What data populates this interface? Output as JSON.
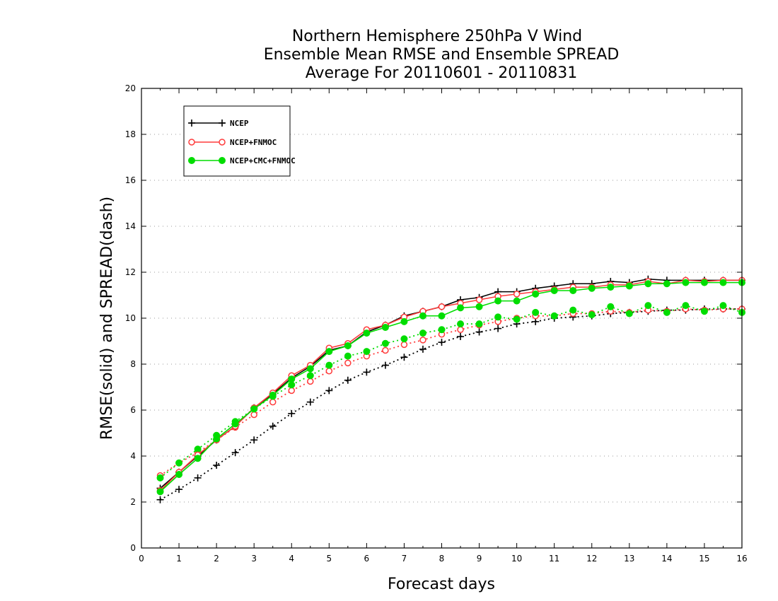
{
  "chart_data": {
    "type": "line",
    "title": [
      "Northern Hemisphere 250hPa V Wind",
      "Ensemble Mean RMSE and Ensemble SPREAD",
      "Average For 20110601 - 20110831"
    ],
    "xlabel": "Forecast days",
    "ylabel": "RMSE(solid) and SPREAD(dash)",
    "xlim": [
      0,
      16
    ],
    "ylim": [
      0,
      20
    ],
    "xticks": [
      0,
      1,
      2,
      3,
      4,
      5,
      6,
      7,
      8,
      9,
      10,
      11,
      12,
      13,
      14,
      15,
      16
    ],
    "yticks": [
      0,
      2,
      4,
      6,
      8,
      10,
      12,
      14,
      16,
      18,
      20
    ],
    "grid": "horizontal dotted",
    "legend_position": "top-left",
    "x": [
      0.5,
      1,
      1.5,
      2,
      2.5,
      3,
      3.5,
      4,
      4.5,
      5,
      5.5,
      6,
      6.5,
      7,
      7.5,
      8,
      8.5,
      9,
      9.5,
      10,
      10.5,
      11,
      11.5,
      12,
      12.5,
      13,
      13.5,
      14,
      14.5,
      15,
      15.5,
      16
    ],
    "series": [
      {
        "name": "NCEP",
        "kind": "RMSE",
        "style": "solid",
        "marker": "plus",
        "color": "#000000",
        "values": [
          2.6,
          3.3,
          4.0,
          4.7,
          5.3,
          6.1,
          6.7,
          7.4,
          7.9,
          8.6,
          8.8,
          9.4,
          9.7,
          10.1,
          10.3,
          10.5,
          10.8,
          10.9,
          11.15,
          11.15,
          11.3,
          11.4,
          11.5,
          11.5,
          11.6,
          11.55,
          11.7,
          11.65,
          11.65,
          11.65,
          11.65,
          11.65
        ]
      },
      {
        "name": "NCEP+FNMOC",
        "kind": "RMSE",
        "style": "solid",
        "marker": "open-circle",
        "color": "#ff3b3b",
        "values": [
          2.5,
          3.3,
          4.05,
          4.7,
          5.3,
          6.1,
          6.75,
          7.5,
          7.95,
          8.7,
          8.9,
          9.5,
          9.7,
          10.05,
          10.3,
          10.5,
          10.65,
          10.8,
          10.95,
          11.05,
          11.15,
          11.25,
          11.35,
          11.35,
          11.45,
          11.45,
          11.6,
          11.5,
          11.65,
          11.6,
          11.65,
          11.65
        ]
      },
      {
        "name": "NCEP+CMC+FNMOC",
        "kind": "RMSE",
        "style": "solid",
        "marker": "filled-circle",
        "color": "#00dd00",
        "values": [
          2.45,
          3.2,
          3.9,
          4.75,
          5.4,
          6.05,
          6.65,
          7.35,
          7.8,
          8.55,
          8.8,
          9.35,
          9.6,
          9.85,
          10.1,
          10.1,
          10.45,
          10.5,
          10.75,
          10.75,
          11.05,
          11.2,
          11.2,
          11.3,
          11.35,
          11.4,
          11.5,
          11.5,
          11.55,
          11.55,
          11.55,
          11.55
        ]
      },
      {
        "name": "NCEP",
        "kind": "SPREAD",
        "style": "dotted",
        "marker": "plus",
        "color": "#000000",
        "values": [
          2.1,
          2.55,
          3.05,
          3.6,
          4.15,
          4.7,
          5.3,
          5.85,
          6.35,
          6.85,
          7.3,
          7.65,
          7.95,
          8.3,
          8.65,
          8.95,
          9.2,
          9.4,
          9.55,
          9.75,
          9.85,
          10.0,
          10.05,
          10.1,
          10.2,
          10.25,
          10.3,
          10.35,
          10.35,
          10.4,
          10.4,
          10.4
        ]
      },
      {
        "name": "NCEP+FNMOC",
        "kind": "SPREAD",
        "style": "dotted",
        "marker": "open-circle",
        "color": "#ff3b3b",
        "values": [
          3.15,
          3.7,
          4.15,
          4.7,
          5.25,
          5.8,
          6.35,
          6.85,
          7.25,
          7.7,
          8.05,
          8.35,
          8.6,
          8.85,
          9.05,
          9.3,
          9.5,
          9.7,
          9.85,
          10.0,
          10.1,
          10.1,
          10.2,
          10.2,
          10.3,
          10.25,
          10.35,
          10.3,
          10.4,
          10.35,
          10.4,
          10.4
        ]
      },
      {
        "name": "NCEP+CMC+FNMOC",
        "kind": "SPREAD",
        "style": "dotted",
        "marker": "filled-circle",
        "color": "#00dd00",
        "values": [
          3.05,
          3.7,
          4.3,
          4.9,
          5.5,
          6.05,
          6.6,
          7.1,
          7.5,
          7.95,
          8.35,
          8.55,
          8.9,
          9.1,
          9.35,
          9.5,
          9.75,
          9.75,
          10.05,
          9.95,
          10.25,
          10.1,
          10.35,
          10.15,
          10.5,
          10.2,
          10.55,
          10.25,
          10.55,
          10.3,
          10.55,
          10.25
        ]
      }
    ]
  }
}
